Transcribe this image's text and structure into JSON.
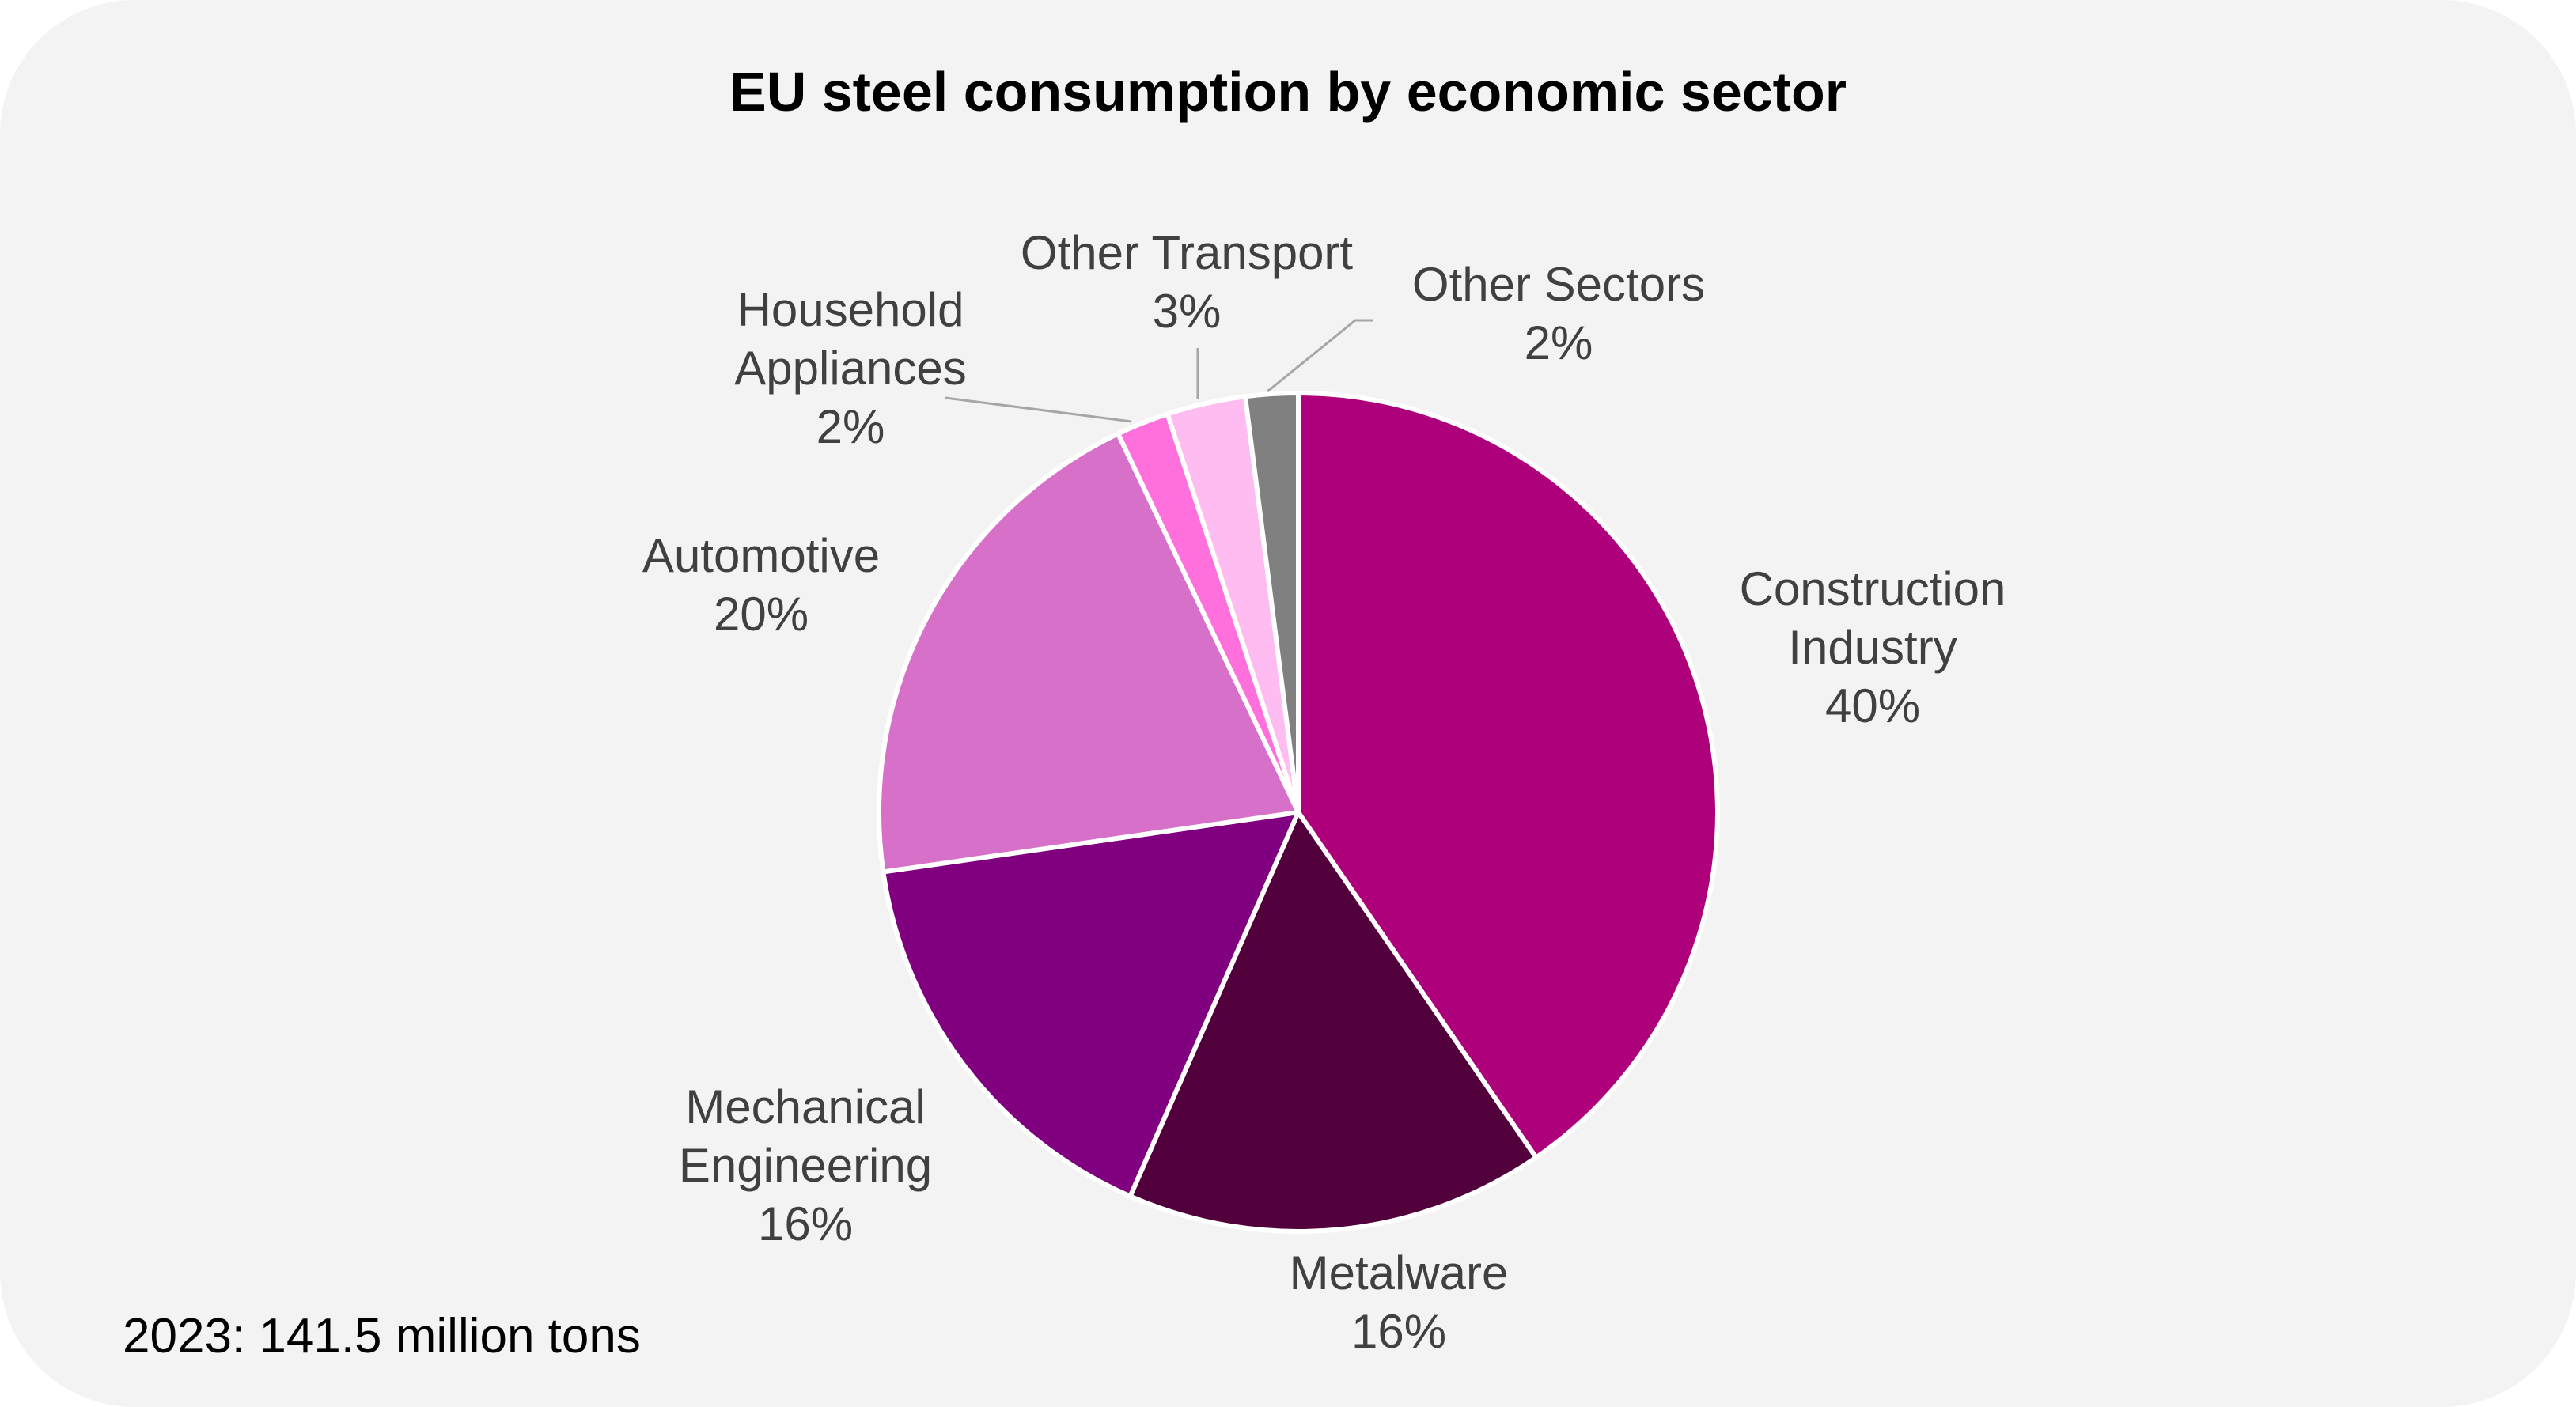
{
  "chart_data": {
    "type": "pie",
    "title": "EU steel consumption by economic sector",
    "note": "2023: 141.5 million tons",
    "slices": [
      {
        "name_lines": [
          "Construction",
          "Industry"
        ],
        "value": 40,
        "label": "40%",
        "color": "#ad007a"
      },
      {
        "name_lines": [
          "Metalware"
        ],
        "value": 16,
        "label": "16%",
        "color": "#52003b"
      },
      {
        "name_lines": [
          "Mechanical",
          "Engineering"
        ],
        "value": 16,
        "label": "16%",
        "color": "#800080"
      },
      {
        "name_lines": [
          "Automotive"
        ],
        "value": 20,
        "label": "20%",
        "color": "#d670c9"
      },
      {
        "name_lines": [
          "Household",
          "Appliances"
        ],
        "value": 2,
        "label": "2%",
        "color": "#ff70dd"
      },
      {
        "name_lines": [
          "Other Transport"
        ],
        "value": 3,
        "label": "3%",
        "color": "#ffbcf0"
      },
      {
        "name_lines": [
          "Other Sectors"
        ],
        "value": 2,
        "label": "2%",
        "color": "#808080"
      }
    ]
  }
}
